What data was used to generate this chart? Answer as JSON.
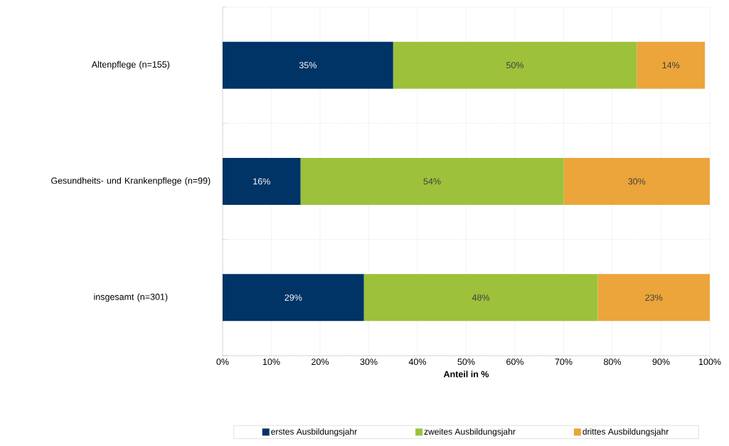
{
  "chart_data": {
    "type": "bar",
    "orientation": "horizontal",
    "stacked": true,
    "xlabel": "**Anteil in %**",
    "categories": [
      "Altenpflege (n=155)",
      "Gesundheits- und Krankenpflege (n=99)",
      "insgesamt (n=301)"
    ],
    "series": [
      {
        "name": "erstes Ausbildungsjahr",
        "color": "#003366",
        "values": [
          35,
          16,
          29
        ],
        "value_labels": [
          "35%",
          "16%",
          "29%"
        ]
      },
      {
        "name": "zweites Ausbildungsjahr",
        "color": "#9dc13b",
        "values": [
          50,
          54,
          48
        ],
        "value_labels": [
          "50%",
          "54%",
          "48%"
        ]
      },
      {
        "name": "drittes Ausbildungsjahr",
        "color": "#eba53a",
        "values": [
          14,
          30,
          23
        ],
        "value_labels": [
          "14%",
          "30%",
          "23%"
        ]
      }
    ],
    "xlim": [
      0,
      100
    ],
    "xticks": [
      {
        "value": 0,
        "label": "0%"
      },
      {
        "value": 10,
        "label": "10%"
      },
      {
        "value": 20,
        "label": "20%"
      },
      {
        "value": 30,
        "label": "30%"
      },
      {
        "value": 40,
        "label": "40%"
      },
      {
        "value": 50,
        "label": "50%"
      },
      {
        "value": 60,
        "label": "60%"
      },
      {
        "value": 70,
        "label": "70%"
      },
      {
        "value": 80,
        "label": "80%"
      },
      {
        "value": 90,
        "label": "90%"
      },
      {
        "value": 100,
        "label": "100%"
      }
    ],
    "grid": true,
    "legend": "bottom"
  }
}
